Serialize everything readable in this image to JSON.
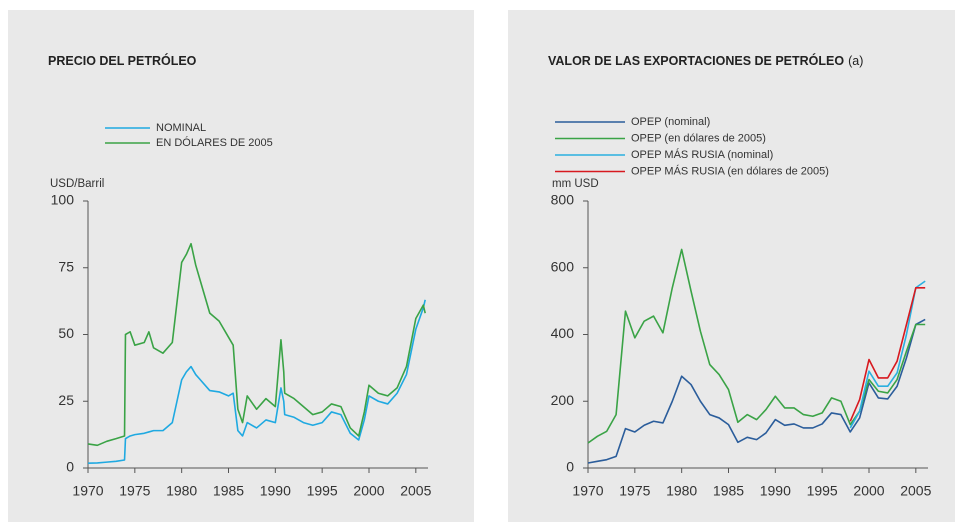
{
  "chart_data": [
    {
      "type": "line",
      "title": "PRECIO DEL PETRÓLEO",
      "y_label": "USD/Barril",
      "x": [
        1970,
        1971,
        1972,
        1973,
        1973.9,
        1974,
        1974.5,
        1975,
        1976,
        1976.5,
        1977,
        1978,
        1979,
        1979.5,
        1980,
        1980.5,
        1981,
        1981.5,
        1982,
        1983,
        1984,
        1985,
        1985.5,
        1986,
        1986.5,
        1987,
        1988,
        1989,
        1990,
        1990.6,
        1990.9,
        1991,
        1992,
        1993,
        1994,
        1995,
        1996,
        1997,
        1998,
        1998.9,
        1999.5,
        2000,
        2001,
        2002,
        2003,
        2004,
        2005,
        2005.8,
        2006
      ],
      "series": [
        {
          "name": "NOMINAL",
          "color": "#1fa9e1",
          "values": [
            1.8,
            1.9,
            2.2,
            2.5,
            3,
            11,
            12,
            12.5,
            13,
            13.5,
            14,
            14,
            17,
            25,
            33,
            36,
            38,
            35,
            33,
            29,
            28.5,
            27,
            28,
            14,
            12,
            17,
            15,
            18,
            17,
            30,
            25,
            20,
            19,
            17,
            16,
            17,
            21,
            20,
            13,
            10.5,
            18,
            27,
            25,
            24,
            28,
            35,
            52,
            60,
            63
          ]
        },
        {
          "name": "EN DÓLARES DE 2005",
          "color": "#3aa346",
          "values": [
            9,
            8.5,
            10,
            11,
            12,
            50,
            51,
            46,
            47,
            51,
            45,
            43,
            47,
            62,
            77,
            80,
            84,
            76,
            70,
            58,
            55,
            49,
            46,
            22,
            17,
            27,
            22,
            26,
            23,
            48,
            36,
            28,
            26,
            23,
            20,
            21,
            24,
            23,
            15,
            12,
            21,
            31,
            28,
            27,
            30,
            38,
            56,
            61,
            58
          ]
        }
      ],
      "xlim": [
        1970,
        2006.3
      ],
      "xticks": [
        1970,
        1975,
        1980,
        1985,
        1990,
        1995,
        2000,
        2005
      ],
      "ylim": [
        0,
        100
      ],
      "yticks": [
        0,
        25,
        50,
        75,
        100
      ]
    },
    {
      "type": "line",
      "title": "VALOR DE LAS EXPORTACIONES DE PETRÓLEO",
      "title_note": "(a)",
      "y_label": "mm USD",
      "x": [
        1970,
        1971,
        1972,
        1973,
        1974,
        1975,
        1976,
        1977,
        1978,
        1979,
        1980,
        1981,
        1982,
        1983,
        1984,
        1985,
        1986,
        1987,
        1988,
        1989,
        1990,
        1991,
        1992,
        1993,
        1994,
        1995,
        1996,
        1997,
        1998,
        1999,
        2000,
        2001,
        2002,
        2003,
        2004,
        2005,
        2006
      ],
      "series": [
        {
          "name": "OPEP (nominal)",
          "color": "#2b5d9b",
          "values": [
            15,
            20,
            25,
            35,
            118,
            108,
            128,
            140,
            135,
            200,
            275,
            250,
            200,
            160,
            150,
            130,
            77,
            92,
            85,
            105,
            145,
            128,
            132,
            120,
            120,
            132,
            165,
            160,
            108,
            150,
            255,
            210,
            207,
            245,
            330,
            430,
            445
          ]
        },
        {
          "name": "OPEP (en dólares de 2005)",
          "color": "#3aa346",
          "values": [
            75,
            95,
            110,
            160,
            470,
            390,
            440,
            455,
            405,
            540,
            655,
            530,
            410,
            310,
            280,
            235,
            137,
            160,
            145,
            175,
            215,
            180,
            180,
            160,
            155,
            165,
            210,
            200,
            130,
            170,
            265,
            230,
            225,
            265,
            350,
            430,
            430
          ]
        },
        {
          "name": "OPEP MÁS RUSIA (nominal)",
          "color": "#2bb0e0",
          "values": [
            null,
            null,
            null,
            null,
            null,
            null,
            null,
            null,
            null,
            null,
            null,
            null,
            null,
            null,
            null,
            null,
            null,
            null,
            null,
            null,
            null,
            null,
            null,
            null,
            null,
            null,
            null,
            null,
            120,
            170,
            290,
            245,
            245,
            285,
            400,
            540,
            560
          ]
        },
        {
          "name": "OPEP MÁS RUSIA (en dólares de 2005)",
          "color": "#d7191f",
          "values": [
            null,
            null,
            null,
            null,
            null,
            null,
            null,
            null,
            null,
            null,
            null,
            null,
            null,
            null,
            null,
            null,
            null,
            null,
            null,
            null,
            null,
            null,
            null,
            null,
            null,
            null,
            null,
            null,
            140,
            205,
            325,
            270,
            270,
            320,
            430,
            540,
            540
          ]
        }
      ],
      "xlim": [
        1970,
        2006.3
      ],
      "xticks": [
        1970,
        1975,
        1980,
        1985,
        1990,
        1995,
        2000,
        2005
      ],
      "ylim": [
        0,
        800
      ],
      "yticks": [
        0,
        200,
        400,
        600,
        800
      ]
    }
  ]
}
